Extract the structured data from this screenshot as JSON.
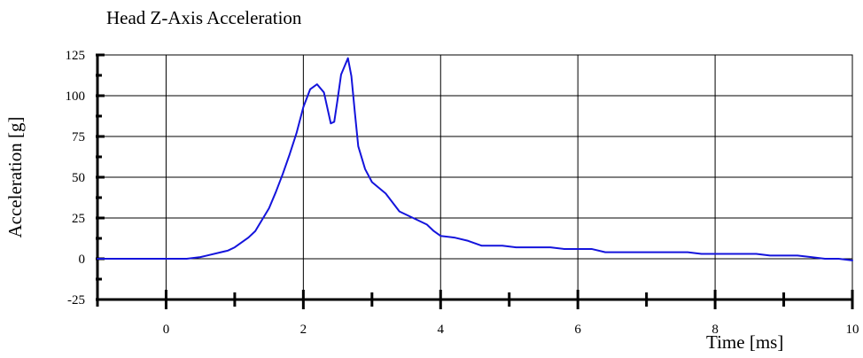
{
  "chart_data": {
    "type": "line",
    "title": "Head Z-Axis Acceleration",
    "xlabel": "Time [ms]",
    "ylabel": "Acceleration [g]",
    "xlim": [
      -1,
      10
    ],
    "ylim": [
      -25,
      125
    ],
    "x_ticks": [
      0,
      2,
      4,
      6,
      8,
      10
    ],
    "y_ticks": [
      -25,
      0,
      25,
      50,
      75,
      100,
      125
    ],
    "x_minor_ticks": [
      -1,
      0,
      1,
      2,
      3,
      4,
      5,
      6,
      7,
      8,
      9,
      10
    ],
    "y_minor_step": 12.5,
    "grid": true,
    "line_color": "#1414dc",
    "series": [
      {
        "x": [
          -1,
          0,
          0.3,
          0.5,
          0.6,
          0.8,
          0.9,
          1.0,
          1.1,
          1.2,
          1.3,
          1.4,
          1.5,
          1.6,
          1.7,
          1.8,
          1.9,
          2.0,
          2.1,
          2.2,
          2.3,
          2.4,
          2.45,
          2.5,
          2.55,
          2.6,
          2.65,
          2.7,
          2.75,
          2.8,
          2.9,
          3.0,
          3.2,
          3.4,
          3.6,
          3.8,
          3.9,
          4.0,
          4.2,
          4.4,
          4.6,
          4.7,
          4.9,
          5.1,
          5.3,
          5.6,
          5.8,
          6.0,
          6.2,
          6.4,
          6.6,
          6.8,
          7.0,
          7.2,
          7.4,
          7.6,
          7.8,
          8.0,
          8.2,
          8.4,
          8.6,
          8.8,
          9.0,
          9.2,
          9.4,
          9.6,
          9.8,
          10.0
        ],
        "y": [
          0,
          0,
          0,
          1,
          2,
          4,
          5,
          7,
          10,
          13,
          17,
          24,
          31,
          41,
          52,
          64,
          77,
          93,
          104,
          107,
          102,
          83,
          84,
          98,
          113,
          118,
          123,
          112,
          90,
          69,
          55,
          47,
          40,
          29,
          25,
          21,
          17,
          14,
          13,
          11,
          8,
          8,
          8,
          7,
          7,
          7,
          6,
          6,
          6,
          4,
          4,
          4,
          4,
          4,
          4,
          4,
          3,
          3,
          3,
          3,
          3,
          2,
          2,
          2,
          1,
          0,
          0,
          -1
        ]
      }
    ]
  }
}
